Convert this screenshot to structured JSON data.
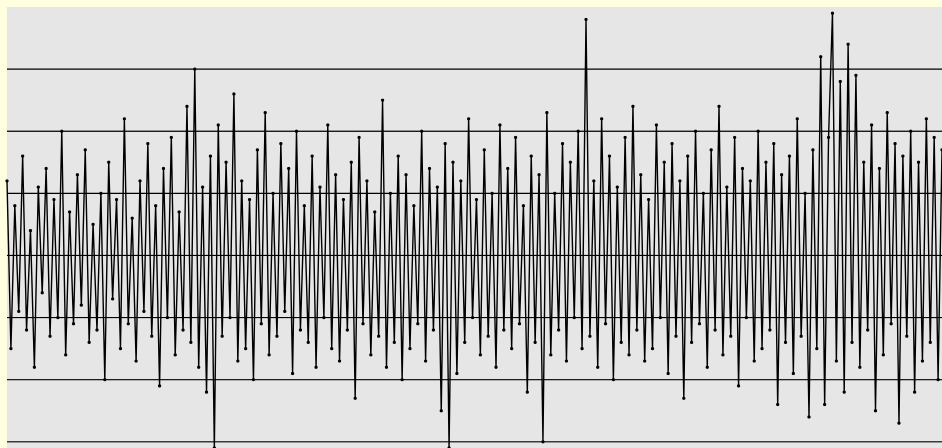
{
  "chart_data": {
    "type": "line",
    "ylim": [
      -3.1,
      4
    ],
    "yticks": [
      -3,
      -2,
      -1,
      0,
      1,
      2,
      3
    ],
    "grid": true,
    "series": [
      {
        "color": "#000000",
        "values": [
          1.2,
          -1.5,
          0.8,
          -0.9,
          1.6,
          -1.2,
          0.4,
          -1.8,
          1.1,
          -0.6,
          1.4,
          -1.3,
          0.9,
          -1.0,
          2.0,
          -1.6,
          0.7,
          -1.1,
          1.3,
          -0.8,
          1.7,
          -1.4,
          0.5,
          -1.2,
          1.0,
          -2.0,
          1.5,
          -0.7,
          0.9,
          -1.5,
          2.2,
          -1.1,
          0.6,
          -1.7,
          1.2,
          -0.9,
          1.8,
          -1.3,
          0.8,
          -2.1,
          1.4,
          -1.0,
          1.9,
          -1.6,
          0.7,
          -1.2,
          2.4,
          -1.4,
          3.0,
          -1.8,
          1.1,
          -2.2,
          1.6,
          -3.1,
          2.1,
          -1.3,
          1.5,
          -1.0,
          2.6,
          -1.7,
          1.2,
          -1.5,
          0.9,
          -2.0,
          1.7,
          -1.1,
          2.3,
          -1.6,
          1.0,
          -1.3,
          1.8,
          -0.9,
          1.4,
          -1.9,
          2.0,
          -1.2,
          0.8,
          -1.4,
          1.6,
          -1.8,
          1.1,
          -1.0,
          2.1,
          -1.5,
          1.3,
          -1.7,
          0.9,
          -1.2,
          1.5,
          -2.3,
          1.9,
          -1.1,
          1.2,
          -1.6,
          0.7,
          -1.3,
          2.5,
          -1.8,
          1.0,
          -1.4,
          1.6,
          -2.0,
          1.3,
          -1.5,
          0.8,
          -1.1,
          2.0,
          -1.7,
          1.4,
          -1.2,
          1.1,
          -2.5,
          1.8,
          -3.1,
          1.5,
          -1.9,
          1.2,
          -1.4,
          2.2,
          -1.0,
          0.9,
          -1.6,
          1.7,
          -1.3,
          1.0,
          -1.8,
          2.1,
          -1.2,
          1.4,
          -1.5,
          1.9,
          -1.1,
          0.8,
          -2.2,
          1.6,
          -1.4,
          1.3,
          -3.0,
          2.3,
          -1.6,
          1.0,
          -1.2,
          1.8,
          -1.7,
          1.5,
          -1.0,
          2.0,
          -1.5,
          3.8,
          -1.3,
          1.2,
          -1.8,
          2.2,
          -1.1,
          1.6,
          -2.0,
          1.1,
          -1.4,
          1.9,
          -1.6,
          2.4,
          -1.2,
          1.3,
          -1.7,
          0.9,
          -1.5,
          2.1,
          -1.0,
          1.5,
          -1.9,
          1.8,
          -1.3,
          1.2,
          -2.3,
          1.6,
          -1.4,
          2.0,
          -1.1,
          1.0,
          -1.8,
          1.7,
          -1.2,
          2.4,
          -1.6,
          1.1,
          -1.3,
          1.9,
          -2.1,
          1.4,
          -1.0,
          1.2,
          -1.7,
          2.0,
          -1.5,
          1.5,
          -1.2,
          1.8,
          -2.4,
          1.3,
          -1.4,
          1.6,
          -1.9,
          2.2,
          -1.3,
          1.0,
          -2.6,
          1.7,
          -1.5,
          3.2,
          -2.4,
          1.9,
          3.9,
          -1.7,
          2.8,
          -2.2,
          3.4,
          -1.4,
          2.9,
          -1.8,
          1.5,
          -1.2,
          2.1,
          -2.5,
          1.4,
          -1.6,
          2.3,
          -1.1,
          1.8,
          -2.7,
          1.6,
          -1.3,
          2.0,
          -2.2,
          1.5,
          -1.7,
          2.2,
          -1.4,
          1.9,
          -2.0,
          1.7
        ]
      }
    ]
  }
}
